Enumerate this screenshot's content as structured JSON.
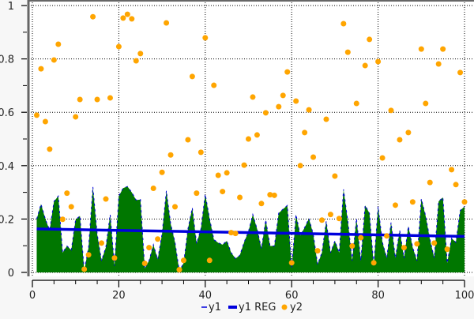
{
  "chart_data": {
    "type": "area+line+scatter",
    "title": "",
    "xlabel": "",
    "ylabel": "",
    "xlim": [
      0,
      100
    ],
    "ylim": [
      0,
      1
    ],
    "x_ticks": [
      "0",
      "20",
      "40",
      "60",
      "80",
      "100"
    ],
    "y_ticks": [
      "0",
      "0.2",
      "0.4",
      "0.6",
      "0.8",
      "1"
    ],
    "grid": true,
    "legend_position": "bottom",
    "x": [
      1,
      2,
      3,
      4,
      5,
      6,
      7,
      8,
      9,
      10,
      11,
      12,
      13,
      14,
      15,
      16,
      17,
      18,
      19,
      20,
      21,
      22,
      23,
      24,
      25,
      26,
      27,
      28,
      29,
      30,
      31,
      32,
      33,
      34,
      35,
      36,
      37,
      38,
      39,
      40,
      41,
      42,
      43,
      44,
      45,
      46,
      47,
      48,
      49,
      50,
      51,
      52,
      53,
      54,
      55,
      56,
      57,
      58,
      59,
      60,
      61,
      62,
      63,
      64,
      65,
      66,
      67,
      68,
      69,
      70,
      71,
      72,
      73,
      74,
      75,
      76,
      77,
      78,
      79,
      80,
      81,
      82,
      83,
      84,
      85,
      86,
      87,
      88,
      89,
      90,
      91,
      92,
      93,
      94,
      95,
      96,
      97,
      98,
      99,
      100
    ],
    "series": [
      {
        "name": "y1",
        "type": "area",
        "color": "#007700",
        "edge_color": "#0000dd",
        "values": [
          0.2,
          0.256,
          0.2,
          0.158,
          0.266,
          0.286,
          0.074,
          0.099,
          0.084,
          0.197,
          0.212,
          0.005,
          0.094,
          0.32,
          0.143,
          0.044,
          0.094,
          0.217,
          0.025,
          0.286,
          0.316,
          0.322,
          0.3,
          0.271,
          0.273,
          0.015,
          0.044,
          0.104,
          0.049,
          0.143,
          0.306,
          0.182,
          0.113,
          0.005,
          0.035,
          0.163,
          0.242,
          0.108,
          0.163,
          0.293,
          0.202,
          0.123,
          0.111,
          0.104,
          0.118,
          0.074,
          0.052,
          0.064,
          0.113,
          0.153,
          0.217,
          0.163,
          0.089,
          0.197,
          0.099,
          0.099,
          0.222,
          0.237,
          0.251,
          0.015,
          0.217,
          0.138,
          0.168,
          0.202,
          0.143,
          0.03,
          0.074,
          0.192,
          0.074,
          0.118,
          0.074,
          0.311,
          0.192,
          0.044,
          0.202,
          0.044,
          0.251,
          0.222,
          0.025,
          0.247,
          0.113,
          0.054,
          0.187,
          0.054,
          0.158,
          0.054,
          0.173,
          0.094,
          0.044,
          0.276,
          0.212,
          0.123,
          0.054,
          0.266,
          0.281,
          0.035,
          0.128,
          0.113,
          0.232,
          0.247
        ]
      },
      {
        "name": "y1 REG",
        "type": "line",
        "color": "#0000dd",
        "x": [
          1,
          100
        ],
        "values": [
          0.163,
          0.135
        ]
      },
      {
        "name": "y2",
        "type": "scatter",
        "color": "#ffa500",
        "values": [
          0.589,
          0.763,
          0.565,
          0.462,
          0.796,
          0.855,
          0.199,
          0.297,
          0.246,
          0.583,
          0.648,
          0.012,
          0.066,
          0.958,
          0.648,
          0.11,
          0.275,
          0.654,
          0.054,
          0.846,
          0.953,
          0.967,
          0.95,
          0.793,
          0.82,
          0.034,
          0.093,
          0.315,
          0.125,
          0.375,
          0.935,
          0.44,
          0.246,
          0.01,
          0.045,
          0.497,
          0.734,
          0.297,
          0.45,
          0.879,
          0.045,
          0.701,
          0.364,
          0.303,
          0.373,
          0.149,
          0.146,
          0.281,
          0.402,
          0.5,
          0.657,
          0.515,
          0.258,
          0.598,
          0.291,
          0.289,
          0.621,
          0.663,
          0.751,
          0.036,
          0.642,
          0.4,
          0.524,
          0.609,
          0.432,
          0.081,
          0.196,
          0.574,
          0.217,
          0.361,
          0.202,
          0.932,
          0.825,
          0.099,
          0.633,
          0.13,
          0.775,
          0.873,
          0.036,
          0.79,
          0.429,
          0.137,
          0.607,
          0.252,
          0.497,
          0.093,
          0.524,
          0.264,
          0.107,
          0.837,
          0.633,
          0.337,
          0.11,
          0.781,
          0.837,
          0.087,
          0.385,
          0.329,
          0.749,
          0.264
        ]
      }
    ]
  }
}
